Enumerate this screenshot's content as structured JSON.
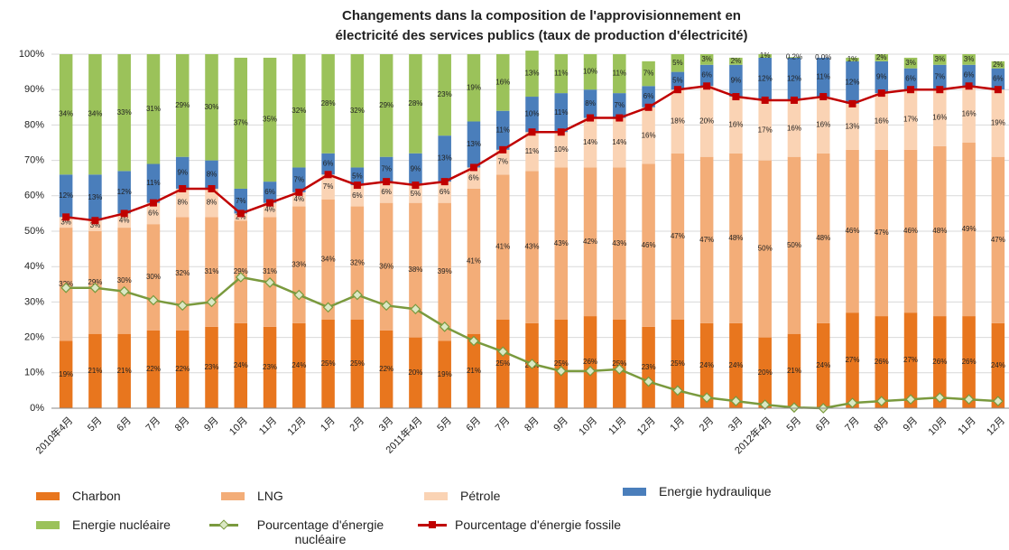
{
  "chart_data": {
    "type": "bar",
    "stacked": true,
    "title": [
      "Changements dans la composition de l'approvisionnement en",
      "électricité des services publics (taux de production d'électricité)"
    ],
    "categories": [
      "2010年4月",
      "5月",
      "6月",
      "7月",
      "8月",
      "9月",
      "10月",
      "11月",
      "12月",
      "1月",
      "2月",
      "3月",
      "2011年4月",
      "5月",
      "6月",
      "7月",
      "8月",
      "9月",
      "10月",
      "11月",
      "12月",
      "1月",
      "2月",
      "3月",
      "2012年4月",
      "5月",
      "6月",
      "7月",
      "8月",
      "9月",
      "10月",
      "11月",
      "12月"
    ],
    "ylim": [
      0,
      100
    ],
    "yticks": [
      {
        "value": 0,
        "label": "0%"
      },
      {
        "value": 10,
        "label": "10%"
      },
      {
        "value": 20,
        "label": "20%"
      },
      {
        "value": 30,
        "label": "30%"
      },
      {
        "value": 40,
        "label": "40%"
      },
      {
        "value": 50,
        "label": "50%"
      },
      {
        "value": 60,
        "label": "60%"
      },
      {
        "value": 70,
        "label": "70%"
      },
      {
        "value": 80,
        "label": "80%"
      },
      {
        "value": 90,
        "label": "90%"
      },
      {
        "value": 100,
        "label": "100%"
      }
    ],
    "grid": true,
    "series": [
      {
        "name": "Charbon",
        "color": "#e8761e",
        "values": [
          19,
          21,
          21,
          22,
          22,
          23,
          24,
          23,
          24,
          25,
          25,
          22,
          20,
          19,
          21,
          25,
          24,
          25,
          26,
          25,
          23,
          25,
          24,
          24,
          20,
          21,
          24,
          27,
          26,
          27,
          26,
          26,
          24
        ],
        "value_labels": [
          "19%",
          "21%",
          "21%",
          "22%",
          "22%",
          "23%",
          "24%",
          "23%",
          "24%",
          "25%",
          "25%",
          "22%",
          "20%",
          "19%",
          "21%",
          "25%",
          "24%",
          "25%",
          "26%",
          "25%",
          "23%",
          "25%",
          "24%",
          "24%",
          "20%",
          "21%",
          "24%",
          "27%",
          "26%",
          "27%",
          "26%",
          "26%",
          "24%"
        ]
      },
      {
        "name": "LNG",
        "color": "#f3ad78",
        "values": [
          32,
          29,
          30,
          30,
          32,
          31,
          29,
          31,
          33,
          34,
          32,
          36,
          38,
          39,
          41,
          41,
          43,
          43,
          42,
          43,
          46,
          47,
          47,
          48,
          50,
          50,
          48,
          46,
          47,
          46,
          48,
          49,
          47
        ],
        "value_labels": [
          "32%",
          "29%",
          "30%",
          "30%",
          "32%",
          "31%",
          "29%",
          "31%",
          "33%",
          "34%",
          "32%",
          "36%",
          "38%",
          "39%",
          "41%",
          "41%",
          "43%",
          "43%",
          "42%",
          "43%",
          "46%",
          "47%",
          "47%",
          "48%",
          "50%",
          "50%",
          "48%",
          "46%",
          "47%",
          "46%",
          "48%",
          "49%",
          "47%"
        ]
      },
      {
        "name": "Pétrole",
        "color": "#fad3b4",
        "values": [
          3,
          3,
          4,
          6,
          8,
          8,
          2,
          4,
          4,
          7,
          6,
          6,
          5,
          6,
          6,
          7,
          11,
          10,
          14,
          14,
          16,
          18,
          20,
          16,
          17,
          16,
          16,
          13,
          16,
          17,
          16,
          16,
          19
        ],
        "value_labels": [
          "3%",
          "3%",
          "4%",
          "6%",
          "8%",
          "8%",
          "2%",
          "4%",
          "4%",
          "7%",
          "6%",
          "6%",
          "5%",
          "6%",
          "6%",
          "7%",
          "11%",
          "10%",
          "14%",
          "14%",
          "16%",
          "18%",
          "20%",
          "16%",
          "17%",
          "16%",
          "16%",
          "13%",
          "16%",
          "17%",
          "16%",
          "16%",
          "19%"
        ]
      },
      {
        "name": "Energie hydraulique",
        "color": "#4a7ebb",
        "values": [
          12,
          13,
          12,
          11,
          9,
          8,
          7,
          6,
          7,
          6,
          5,
          7,
          9,
          13,
          13,
          11,
          10,
          11,
          8,
          7,
          6,
          5,
          6,
          9,
          12,
          12,
          11,
          12,
          9,
          6,
          7,
          6,
          6
        ],
        "value_labels": [
          "12%",
          "13%",
          "12%",
          "11%",
          "9%",
          "8%",
          "7%",
          "6%",
          "7%",
          "6%",
          "5%",
          "7%",
          "9%",
          "13%",
          "13%",
          "11%",
          "10%",
          "11%",
          "8%",
          "7%",
          "6%",
          "5%",
          "6%",
          "9%",
          "12%",
          "12%",
          "11%",
          "12%",
          "9%",
          "6%",
          "7%",
          "6%",
          "6%"
        ]
      },
      {
        "name": "Energie nucléaire",
        "color": "#9bc25a",
        "values": [
          34,
          34,
          33,
          31,
          29,
          30,
          37,
          35,
          32,
          28,
          32,
          29,
          28,
          23,
          19,
          16,
          13,
          11,
          10,
          11,
          7,
          5,
          3,
          2,
          1,
          0.2,
          0,
          1,
          2,
          3,
          3,
          3,
          2
        ],
        "value_labels": [
          "34%",
          "34%",
          "33%",
          "31%",
          "29%",
          "30%",
          "37%",
          "35%",
          "32%",
          "28%",
          "32%",
          "29%",
          "28%",
          "23%",
          "19%",
          "16%",
          "13%",
          "11%",
          "10%",
          "11%",
          "7%",
          "5%",
          "3%",
          "2%",
          "1%",
          "0.2%",
          "0.0%",
          "1%",
          "2%",
          "3%",
          "3%",
          "3%",
          "2%"
        ]
      },
      {
        "name": "Pourcentage d'énergie nucléaire",
        "type": "line",
        "marker": "diamond",
        "color": "#7a9a3e",
        "values": [
          34,
          34,
          33,
          30.5,
          29,
          30,
          37,
          35.5,
          32,
          28.5,
          32,
          29,
          28,
          23,
          19,
          16,
          12.5,
          10.5,
          10.5,
          11,
          7.5,
          5,
          3,
          2,
          1,
          0.2,
          0,
          1.5,
          2,
          2.5,
          3,
          2.5,
          2
        ]
      },
      {
        "name": "Pourcentage d'énergie fossile",
        "type": "line",
        "marker": "square",
        "color": "#c00000",
        "values": [
          54,
          53,
          55,
          58,
          62,
          62,
          55,
          58,
          61,
          66,
          63,
          64,
          63,
          64,
          68,
          73,
          78,
          78,
          82,
          82,
          85,
          90,
          91,
          88,
          87,
          87,
          88,
          86,
          89,
          90,
          90,
          91,
          90
        ]
      }
    ]
  }
}
